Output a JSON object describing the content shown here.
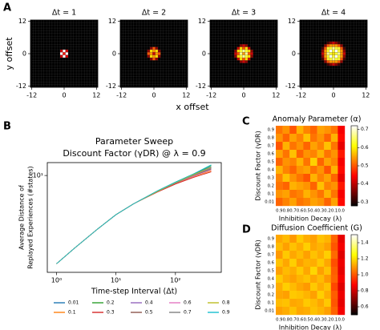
{
  "figure": {
    "letters": [
      "A",
      "B",
      "C",
      "D"
    ],
    "xlabel": "x offset",
    "ylabel": "y offset"
  },
  "chart_data": [
    {
      "type": "heatmap",
      "title": "Δt = 1",
      "colormap": "hot",
      "vlim": [
        0,
        1
      ],
      "xlim": [
        -12.5,
        12.5
      ],
      "ylim": [
        -12.5,
        12.5
      ],
      "xticks": [
        -12,
        0,
        12
      ],
      "yticks": [
        12,
        0,
        -12
      ],
      "x": [
        -4,
        -3,
        -2,
        -1,
        0,
        1,
        2,
        3,
        4
      ],
      "y": [
        4,
        3,
        2,
        1,
        0,
        -1,
        -2,
        -3,
        -4
      ],
      "values": [
        [
          0,
          0,
          0,
          0,
          0,
          0,
          0,
          0,
          0
        ],
        [
          0,
          0,
          0,
          0,
          0,
          0,
          0,
          0,
          0
        ],
        [
          0,
          0,
          0,
          0,
          0,
          0,
          0,
          0,
          0
        ],
        [
          0,
          0,
          0,
          0.3,
          1,
          0.3,
          0,
          0,
          0
        ],
        [
          0,
          0,
          0,
          1,
          0.4,
          1,
          0,
          0,
          0
        ],
        [
          0,
          0,
          0,
          0.3,
          1,
          0.3,
          0,
          0,
          0
        ],
        [
          0,
          0,
          0,
          0,
          0,
          0,
          0,
          0,
          0
        ],
        [
          0,
          0,
          0,
          0,
          0,
          0,
          0,
          0,
          0
        ],
        [
          0,
          0,
          0,
          0,
          0,
          0,
          0,
          0,
          0
        ]
      ]
    },
    {
      "type": "heatmap",
      "title": "Δt = 2",
      "colormap": "hot",
      "vlim": [
        0,
        1
      ],
      "xlim": [
        -12.5,
        12.5
      ],
      "ylim": [
        -12.5,
        12.5
      ],
      "xticks": [
        -12,
        0,
        12
      ],
      "yticks": [
        12,
        0,
        -12
      ],
      "x": [
        -4,
        -3,
        -2,
        -1,
        0,
        1,
        2,
        3,
        4
      ],
      "y": [
        4,
        3,
        2,
        1,
        0,
        -1,
        -2,
        -3,
        -4
      ],
      "values": [
        [
          0,
          0,
          0,
          0,
          0,
          0,
          0,
          0,
          0
        ],
        [
          0,
          0,
          0,
          0,
          0,
          0,
          0,
          0,
          0
        ],
        [
          0,
          0,
          0,
          0.2,
          0.5,
          0.2,
          0,
          0,
          0
        ],
        [
          0,
          0,
          0.2,
          0.7,
          0.6,
          0.7,
          0.2,
          0,
          0
        ],
        [
          0,
          0,
          0.5,
          0.6,
          0.3,
          0.6,
          0.5,
          0,
          0
        ],
        [
          0,
          0,
          0.2,
          0.7,
          0.6,
          0.7,
          0.2,
          0,
          0
        ],
        [
          0,
          0,
          0,
          0.2,
          0.5,
          0.2,
          0,
          0,
          0
        ],
        [
          0,
          0,
          0,
          0,
          0,
          0,
          0,
          0,
          0
        ],
        [
          0,
          0,
          0,
          0,
          0,
          0,
          0,
          0,
          0
        ]
      ]
    },
    {
      "type": "heatmap",
      "title": "Δt = 3",
      "colormap": "hot",
      "vlim": [
        0,
        1
      ],
      "xlim": [
        -12.5,
        12.5
      ],
      "ylim": [
        -12.5,
        12.5
      ],
      "xticks": [
        -12,
        0,
        12
      ],
      "yticks": [
        12,
        0,
        -12
      ],
      "x": [
        -4,
        -3,
        -2,
        -1,
        0,
        1,
        2,
        3,
        4
      ],
      "y": [
        4,
        3,
        2,
        1,
        0,
        -1,
        -2,
        -3,
        -4
      ],
      "values": [
        [
          0,
          0,
          0,
          0,
          0,
          0,
          0,
          0,
          0
        ],
        [
          0,
          0,
          0,
          0.2,
          0.3,
          0.2,
          0,
          0,
          0
        ],
        [
          0,
          0,
          0.3,
          0.7,
          0.5,
          0.7,
          0.3,
          0,
          0
        ],
        [
          0,
          0.2,
          0.7,
          0.8,
          0.9,
          0.8,
          0.7,
          0.2,
          0
        ],
        [
          0,
          0.3,
          0.5,
          0.9,
          0.6,
          0.9,
          0.5,
          0.3,
          0
        ],
        [
          0,
          0.2,
          0.7,
          0.8,
          0.9,
          0.8,
          0.7,
          0.2,
          0
        ],
        [
          0,
          0,
          0.3,
          0.7,
          0.5,
          0.7,
          0.3,
          0,
          0
        ],
        [
          0,
          0,
          0,
          0.2,
          0.3,
          0.2,
          0,
          0,
          0
        ],
        [
          0,
          0,
          0,
          0,
          0,
          0,
          0,
          0,
          0
        ]
      ]
    },
    {
      "type": "heatmap",
      "title": "Δt = 4",
      "colormap": "hot",
      "vlim": [
        0,
        1
      ],
      "xlim": [
        -12.5,
        12.5
      ],
      "ylim": [
        -12.5,
        12.5
      ],
      "xticks": [
        -12,
        0,
        12
      ],
      "yticks": [
        12,
        0,
        -12
      ],
      "x": [
        -4,
        -3,
        -2,
        -1,
        0,
        1,
        2,
        3,
        4
      ],
      "y": [
        4,
        3,
        2,
        1,
        0,
        -1,
        -2,
        -3,
        -4
      ],
      "values": [
        [
          0,
          0,
          0.1,
          0.2,
          0.3,
          0.2,
          0.1,
          0,
          0
        ],
        [
          0,
          0.2,
          0.5,
          0.6,
          0.6,
          0.6,
          0.5,
          0.2,
          0
        ],
        [
          0.1,
          0.5,
          0.8,
          0.8,
          0.9,
          0.8,
          0.8,
          0.5,
          0.1
        ],
        [
          0.2,
          0.6,
          0.8,
          1,
          0.8,
          1,
          0.8,
          0.6,
          0.2
        ],
        [
          0.3,
          0.6,
          0.9,
          0.8,
          0.7,
          0.8,
          0.9,
          0.6,
          0.3
        ],
        [
          0.2,
          0.6,
          0.8,
          1,
          0.8,
          1,
          0.8,
          0.6,
          0.2
        ],
        [
          0.1,
          0.5,
          0.8,
          0.8,
          0.9,
          0.8,
          0.8,
          0.5,
          0.1
        ],
        [
          0,
          0.2,
          0.5,
          0.6,
          0.6,
          0.6,
          0.5,
          0.2,
          0
        ],
        [
          0,
          0,
          0.1,
          0.2,
          0.3,
          0.2,
          0.1,
          0,
          0
        ]
      ]
    },
    {
      "type": "line",
      "title": [
        "Parameter Sweep",
        "Discount Factor (γDR) @ λ = 0.9"
      ],
      "xlabel": "Time-step Interval (Δt)",
      "ylabel": [
        "Average Distance of",
        "Replayed Experiences (#states)"
      ],
      "xscale": "log",
      "yscale": "log",
      "xlim": [
        0.7,
        590
      ],
      "ylim": [
        0.8,
        14
      ],
      "xticks": [
        {
          "value": 1,
          "label": "10⁰"
        },
        {
          "value": 10,
          "label": "10¹"
        },
        {
          "value": 100,
          "label": "10²"
        }
      ],
      "yticks": [
        {
          "value": 10,
          "label": "10¹"
        }
      ],
      "legend": "bottom",
      "x": [
        1,
        2,
        5,
        10,
        20,
        50,
        100,
        200,
        400
      ],
      "series": [
        {
          "name": "0.01",
          "color": "#1f77b4",
          "values": [
            1,
            1.5,
            2.5,
            3.6,
            4.8,
            6.7,
            8.4,
            10.3,
            12.6
          ]
        },
        {
          "name": "0.1",
          "color": "#ff7f0e",
          "values": [
            1,
            1.5,
            2.5,
            3.6,
            4.8,
            6.6,
            8.1,
            9.7,
            11.3
          ]
        },
        {
          "name": "0.2",
          "color": "#2ca02c",
          "values": [
            1,
            1.5,
            2.5,
            3.6,
            4.8,
            6.7,
            8.4,
            10.4,
            13.0
          ]
        },
        {
          "name": "0.3",
          "color": "#d62728",
          "values": [
            1,
            1.5,
            2.5,
            3.6,
            4.8,
            6.5,
            8.0,
            9.5,
            11.0
          ]
        },
        {
          "name": "0.4",
          "color": "#9467bd",
          "values": [
            1,
            1.5,
            2.5,
            3.6,
            4.8,
            6.6,
            8.3,
            10.1,
            12.2
          ]
        },
        {
          "name": "0.5",
          "color": "#8c564b",
          "values": [
            1,
            1.5,
            2.5,
            3.6,
            4.8,
            6.6,
            8.2,
            9.9,
            11.8
          ]
        },
        {
          "name": "0.6",
          "color": "#e377c2",
          "values": [
            1,
            1.5,
            2.5,
            3.6,
            4.8,
            6.6,
            8.2,
            9.8,
            11.6
          ]
        },
        {
          "name": "0.7",
          "color": "#7f7f7f",
          "values": [
            1,
            1.5,
            2.5,
            3.6,
            4.8,
            6.6,
            8.2,
            10.0,
            12.0
          ]
        },
        {
          "name": "0.8",
          "color": "#bcbd22",
          "values": [
            1,
            1.5,
            2.5,
            3.6,
            4.8,
            6.6,
            8.3,
            10.2,
            12.4
          ]
        },
        {
          "name": "0.9",
          "color": "#17becf",
          "values": [
            1,
            1.5,
            2.5,
            3.6,
            4.8,
            6.7,
            8.4,
            10.4,
            13.2
          ]
        }
      ]
    },
    {
      "type": "matrix",
      "title": "Anomaly Parameter (α)",
      "xlabel": "Inhibition Decay (λ)",
      "ylabel": "Discount Factor (γDR)",
      "colormap": "hot",
      "x": [
        "0.9",
        "0.8",
        "0.7",
        "0.6",
        "0.5",
        "0.4",
        "0.3",
        "0.2",
        "0.1",
        "0.0"
      ],
      "y": [
        "0.9",
        "0.8",
        "0.7",
        "0.6",
        "0.5",
        "0.4",
        "0.3",
        "0.2",
        "0.1",
        "0.01"
      ],
      "colorbar": {
        "lim": [
          0.28,
          0.72
        ],
        "ticks": [
          0.3,
          0.4,
          0.5,
          0.6,
          0.7
        ]
      },
      "values": [
        [
          0.52,
          0.54,
          0.5,
          0.56,
          0.53,
          0.51,
          0.55,
          0.54,
          0.52,
          0.44
        ],
        [
          0.54,
          0.51,
          0.55,
          0.53,
          0.57,
          0.52,
          0.54,
          0.51,
          0.56,
          0.45
        ],
        [
          0.5,
          0.56,
          0.52,
          0.54,
          0.51,
          0.55,
          0.53,
          0.57,
          0.52,
          0.43
        ],
        [
          0.55,
          0.52,
          0.57,
          0.51,
          0.54,
          0.53,
          0.56,
          0.52,
          0.54,
          0.46
        ],
        [
          0.51,
          0.54,
          0.53,
          0.56,
          0.52,
          0.58,
          0.51,
          0.55,
          0.53,
          0.44
        ],
        [
          0.56,
          0.53,
          0.51,
          0.54,
          0.55,
          0.52,
          0.54,
          0.5,
          0.56,
          0.45
        ],
        [
          0.53,
          0.57,
          0.54,
          0.52,
          0.5,
          0.56,
          0.53,
          0.55,
          0.51,
          0.43
        ],
        [
          0.52,
          0.51,
          0.56,
          0.55,
          0.54,
          0.51,
          0.57,
          0.53,
          0.54,
          0.46
        ],
        [
          0.54,
          0.55,
          0.52,
          0.53,
          0.56,
          0.54,
          0.52,
          0.56,
          0.52,
          0.44
        ],
        [
          0.51,
          0.53,
          0.55,
          0.52,
          0.53,
          0.55,
          0.54,
          0.51,
          0.55,
          0.45
        ]
      ]
    },
    {
      "type": "matrix",
      "title": "Diffusion Coefficient (G)",
      "xlabel": "Inhibition Decay (λ)",
      "ylabel": "Discount Factor (γDR)",
      "colormap": "hot",
      "x": [
        "0.9",
        "0.8",
        "0.7",
        "0.6",
        "0.5",
        "0.4",
        "0.3",
        "0.2",
        "0.1",
        "0.0"
      ],
      "y": [
        "0.9",
        "0.8",
        "0.7",
        "0.6",
        "0.5",
        "0.4",
        "0.3",
        "0.2",
        "0.1",
        "0.01"
      ],
      "colorbar": {
        "lim": [
          0.5,
          1.5
        ],
        "ticks": [
          0.6,
          0.8,
          {
            "value": 1,
            "label": "1.0"
          },
          1.2,
          1.4
        ]
      },
      "values": [
        [
          1.12,
          1.15,
          1.1,
          1.17,
          1.13,
          1.11,
          1.16,
          1.14,
          1.02,
          0.84
        ],
        [
          1.15,
          1.11,
          1.16,
          1.13,
          1.18,
          1.12,
          1.14,
          1.11,
          1.0,
          0.86
        ],
        [
          1.1,
          1.17,
          1.12,
          1.15,
          1.11,
          1.16,
          1.13,
          1.18,
          1.03,
          0.83
        ],
        [
          1.16,
          1.12,
          1.18,
          1.11,
          1.14,
          1.13,
          1.17,
          1.12,
          0.99,
          0.85
        ],
        [
          1.11,
          1.15,
          1.13,
          1.17,
          1.12,
          1.19,
          1.11,
          1.16,
          1.01,
          0.84
        ],
        [
          1.17,
          1.13,
          1.11,
          1.14,
          1.16,
          1.12,
          1.15,
          1.1,
          1.02,
          0.86
        ],
        [
          1.13,
          1.18,
          1.15,
          1.12,
          1.1,
          1.17,
          1.13,
          1.16,
          0.98,
          0.83
        ],
        [
          1.12,
          1.11,
          1.17,
          1.16,
          1.14,
          1.11,
          1.18,
          1.13,
          1.01,
          0.85
        ],
        [
          1.15,
          1.16,
          1.12,
          1.13,
          1.17,
          1.15,
          1.12,
          1.17,
          1.0,
          0.84
        ],
        [
          1.11,
          1.13,
          1.16,
          1.12,
          1.13,
          1.16,
          1.14,
          1.11,
          1.02,
          0.86
        ]
      ]
    }
  ]
}
